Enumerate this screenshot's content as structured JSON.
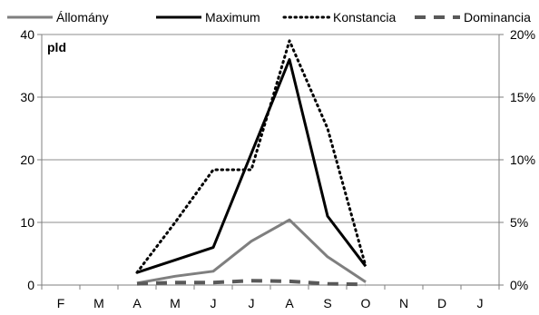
{
  "chart_data": {
    "type": "line",
    "unit_label": "pld",
    "categories": [
      "F",
      "M",
      "A",
      "M",
      "J",
      "J",
      "A",
      "S",
      "O",
      "N",
      "D",
      "J"
    ],
    "y_left": {
      "ylim": [
        0,
        40
      ],
      "ticks": [
        "0",
        "10",
        "20",
        "30",
        "40"
      ]
    },
    "y_right": {
      "ylim": [
        0,
        20
      ],
      "ticks": [
        "0%",
        "5%",
        "10%",
        "15%",
        "20%"
      ]
    },
    "grid": true,
    "legend_position": "top",
    "series": [
      {
        "name": "Állomány",
        "axis": "left",
        "style": "solid",
        "color": "#7f7f7f",
        "values": [
          null,
          null,
          0.3,
          1.4,
          2.2,
          7.0,
          10.4,
          4.5,
          0.5,
          null,
          null,
          null
        ]
      },
      {
        "name": "Maximum",
        "axis": "left",
        "style": "solid",
        "color": "#000000",
        "values": [
          null,
          null,
          2,
          4,
          6,
          21,
          36,
          11,
          3,
          null,
          null,
          null
        ]
      },
      {
        "name": "Konstancia",
        "axis": "right",
        "style": "dotted",
        "color": "#000000",
        "values": [
          null,
          null,
          1.0,
          5.0,
          9.2,
          9.2,
          19.5,
          12.5,
          1.5,
          null,
          null,
          null
        ]
      },
      {
        "name": "Dominancia",
        "axis": "right",
        "style": "dashed",
        "color": "#595959",
        "values": [
          null,
          null,
          0.1,
          0.2,
          0.2,
          0.35,
          0.3,
          0.1,
          0.05,
          null,
          null,
          null
        ]
      }
    ]
  }
}
